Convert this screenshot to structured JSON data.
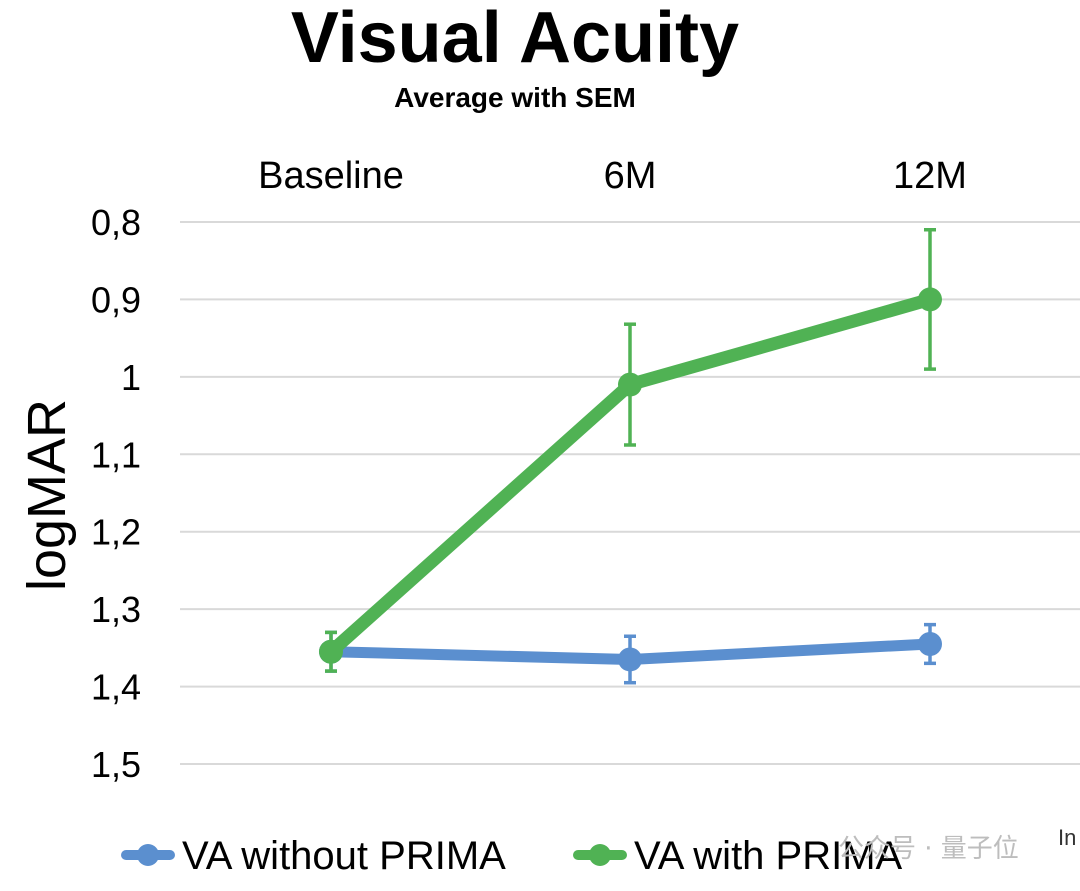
{
  "chart_data": {
    "type": "line",
    "title": "Visual Acuity",
    "subtitle": "Average with SEM",
    "xlabel": "",
    "ylabel": "logMAR",
    "categories": [
      "Baseline",
      "6M",
      "12M"
    ],
    "x_axis_position": "top",
    "y_reversed": true,
    "ylim": [
      0.8,
      1.5
    ],
    "yticks": [
      0.8,
      0.9,
      1.0,
      1.1,
      1.2,
      1.3,
      1.4,
      1.5
    ],
    "ytick_labels": [
      "0,8",
      "0,9",
      "1",
      "1,1",
      "1,2",
      "1,3",
      "1,4",
      "1,5"
    ],
    "grid": true,
    "legend_position": "bottom",
    "series": [
      {
        "name": "VA without PRIMA",
        "color": "#5b8fcf",
        "values": [
          1.355,
          1.365,
          1.345
        ],
        "error": [
          0.025,
          0.03,
          0.025
        ]
      },
      {
        "name": "VA with PRIMA",
        "color": "#50b254",
        "values": [
          1.355,
          1.01,
          0.9
        ],
        "error": [
          0.025,
          0.078,
          0.09
        ]
      }
    ]
  },
  "watermark": {
    "text": "公众号 · 量子位",
    "edge_text": "In"
  }
}
